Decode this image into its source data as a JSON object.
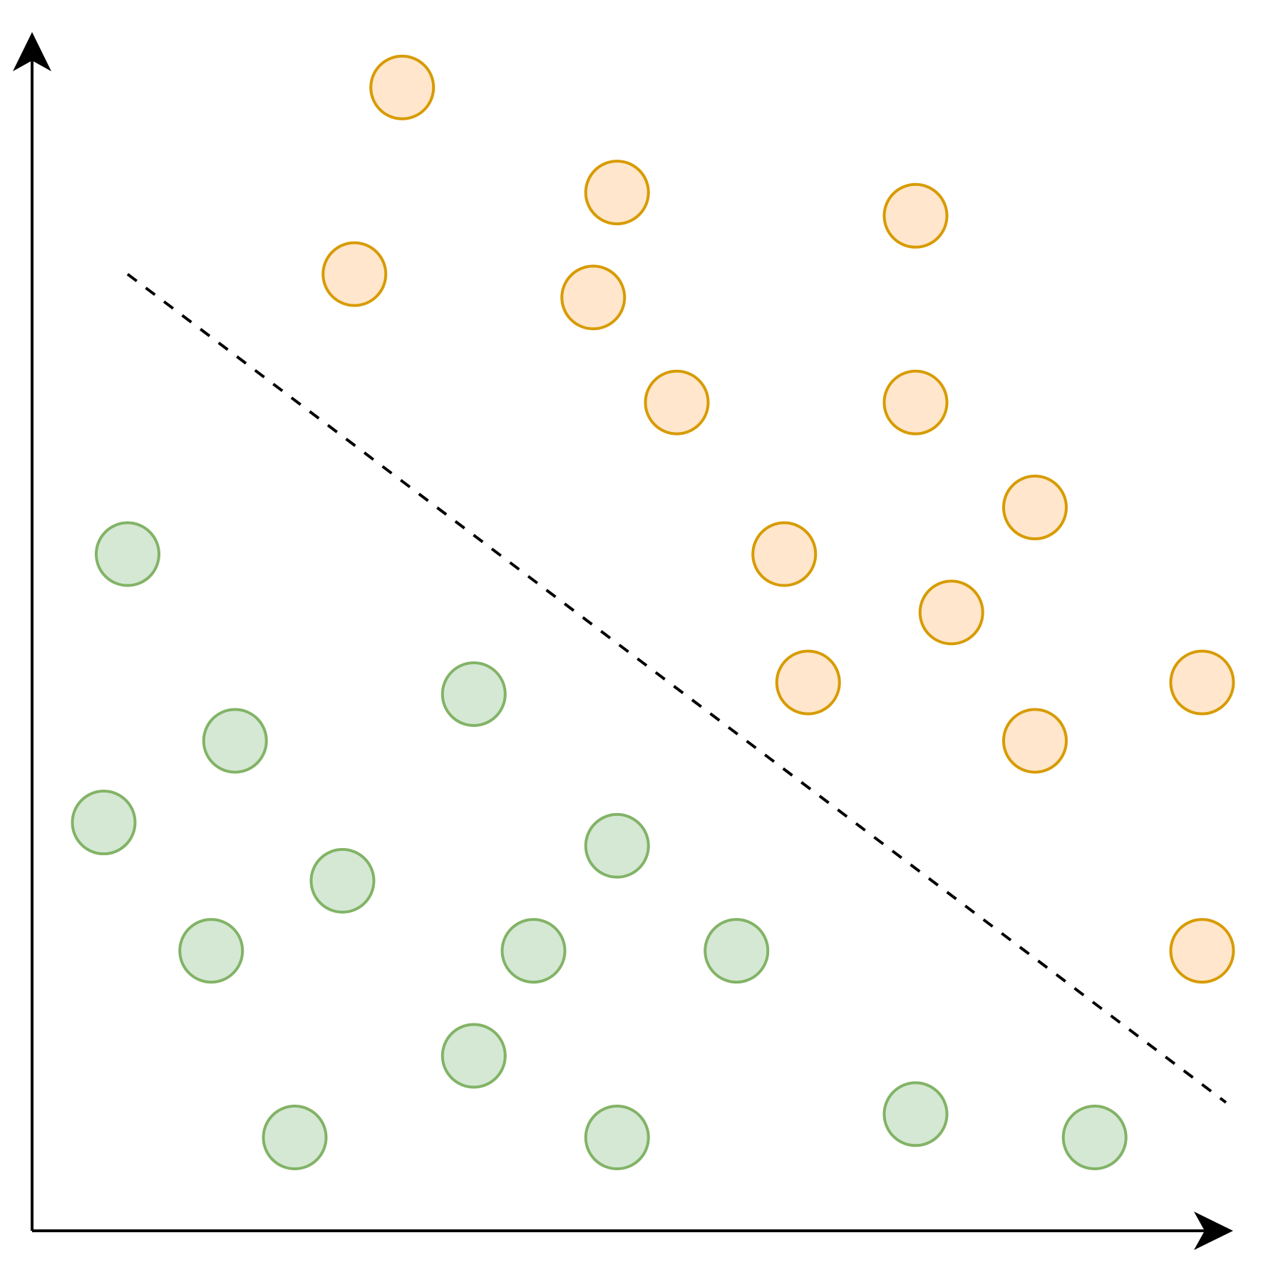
{
  "chart_data": {
    "type": "scatter",
    "title": "",
    "xlabel": "",
    "ylabel": "",
    "xlim": [
      0,
      100
    ],
    "ylim": [
      0,
      100
    ],
    "grid": false,
    "legend": "none",
    "series": [
      {
        "fill": "#ffe6cc",
        "stroke": "#d79b00",
        "points": [
          [
            31,
            98
          ],
          [
            49,
            89
          ],
          [
            74,
            87
          ],
          [
            27,
            82
          ],
          [
            47,
            80
          ],
          [
            54,
            71
          ],
          [
            74,
            71
          ],
          [
            84,
            62
          ],
          [
            63,
            58
          ],
          [
            77,
            53
          ],
          [
            65,
            47
          ],
          [
            98,
            47
          ],
          [
            84,
            42
          ],
          [
            98,
            24
          ]
        ]
      },
      {
        "fill": "#d5e8d4",
        "stroke": "#82b366",
        "points": [
          [
            8,
            58
          ],
          [
            37,
            46
          ],
          [
            17,
            42
          ],
          [
            6,
            35
          ],
          [
            49,
            33
          ],
          [
            26,
            30
          ],
          [
            15,
            24
          ],
          [
            42,
            24
          ],
          [
            59,
            24
          ],
          [
            37,
            15
          ],
          [
            22,
            8
          ],
          [
            49,
            8
          ],
          [
            74,
            10
          ],
          [
            89,
            8
          ]
        ]
      }
    ],
    "lines": [
      {
        "style": "dashed",
        "color": "#000000",
        "from": [
          8,
          82
        ],
        "to": [
          100,
          11
        ]
      }
    ],
    "axis_color": "#000000"
  }
}
